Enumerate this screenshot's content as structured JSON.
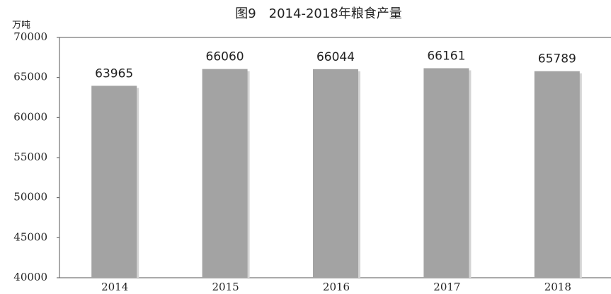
{
  "chart_data": {
    "type": "bar",
    "title": "图9　2014-2018年粮食产量",
    "y_axis_label": "万吨",
    "categories": [
      "2014",
      "2015",
      "2016",
      "2017",
      "2018"
    ],
    "values": [
      63965,
      66060,
      66044,
      66161,
      65789
    ],
    "color": "#a3a3a3",
    "ylim": [
      40000,
      70000
    ],
    "yticks": [
      40000,
      45000,
      50000,
      55000,
      60000,
      65000,
      70000
    ],
    "grid": false
  }
}
